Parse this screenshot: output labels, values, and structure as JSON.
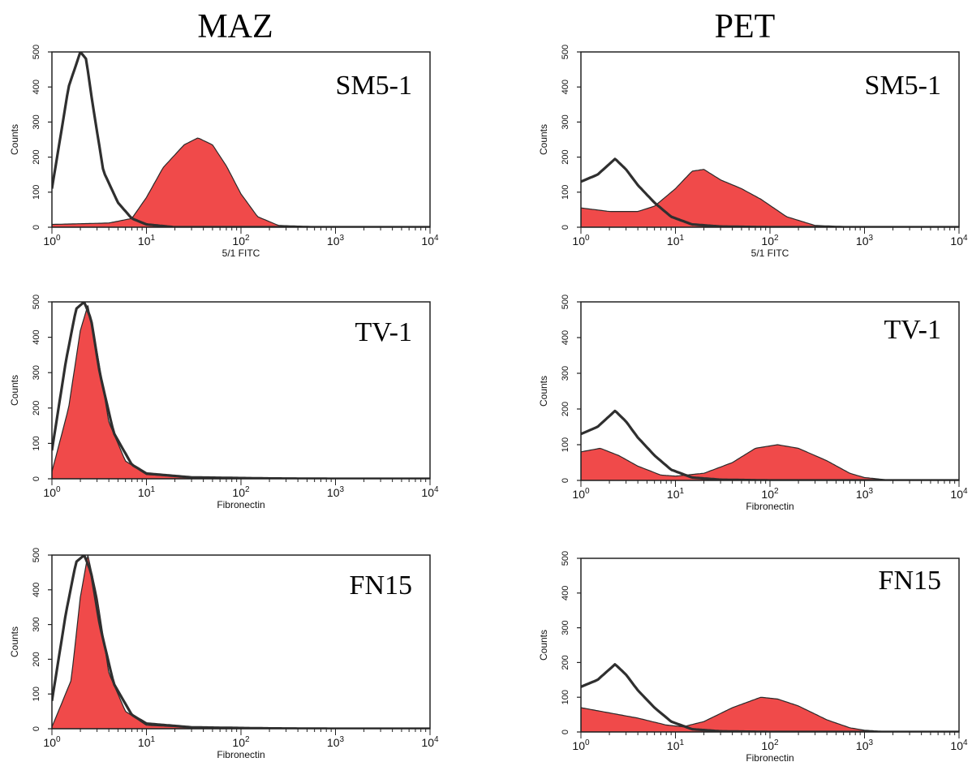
{
  "column_titles": [
    "MAZ",
    "PET"
  ],
  "colors": {
    "filled": "#f04a4a",
    "outline": "#2f2f2f"
  },
  "chart_data": [
    {
      "type": "area",
      "column": "MAZ",
      "title": "SM5-1",
      "xlabel": "5/1 FITC",
      "ylabel": "Counts",
      "x_scale": "log",
      "xlim": [
        1,
        10000
      ],
      "ylim": [
        0,
        500
      ],
      "y_ticks": [
        0,
        100,
        200,
        300,
        400,
        500
      ],
      "x_ticks": [
        "10^0",
        "10^1",
        "10^2",
        "10^3",
        "10^4"
      ],
      "series": [
        {
          "x": [
            1,
            1.5,
            2,
            2.3,
            2.7,
            3.5,
            5,
            7,
            10,
            20
          ],
          "y": [
            110,
            400,
            500,
            480,
            350,
            160,
            70,
            25,
            8,
            0
          ]
        },
        {
          "x": [
            1,
            4,
            7,
            10,
            15,
            25,
            35,
            50,
            70,
            100,
            150,
            250,
            1000
          ],
          "y": [
            8,
            12,
            25,
            85,
            170,
            235,
            255,
            235,
            175,
            95,
            30,
            5,
            0
          ]
        }
      ]
    },
    {
      "type": "area",
      "column": "PET",
      "title": "SM5-1",
      "xlabel": "5/1 FITC",
      "ylabel": "Counts",
      "x_scale": "log",
      "xlim": [
        1,
        10000
      ],
      "ylim": [
        0,
        500
      ],
      "y_ticks": [
        0,
        100,
        200,
        300,
        400,
        500
      ],
      "x_ticks": [
        "10^0",
        "10^1",
        "10^2",
        "10^3",
        "10^4"
      ],
      "series": [
        {
          "x": [
            1,
            1.5,
            2.3,
            3,
            4,
            6,
            9,
            15,
            30,
            100
          ],
          "y": [
            130,
            150,
            195,
            165,
            120,
            70,
            30,
            8,
            2,
            0
          ]
        },
        {
          "x": [
            1,
            2,
            4,
            6,
            10,
            15,
            20,
            30,
            50,
            80,
            150,
            300,
            1000
          ],
          "y": [
            55,
            45,
            45,
            60,
            110,
            160,
            165,
            135,
            110,
            80,
            30,
            5,
            0
          ]
        }
      ]
    },
    {
      "type": "area",
      "column": "MAZ",
      "title": "TV-1",
      "xlabel": "Fibronectin",
      "ylabel": "Counts",
      "x_scale": "log",
      "xlim": [
        1,
        10000
      ],
      "ylim": [
        0,
        500
      ],
      "y_ticks": [
        0,
        100,
        200,
        300,
        400,
        500
      ],
      "x_ticks": [
        "10^0",
        "10^1",
        "10^2",
        "10^3",
        "10^4"
      ],
      "series": [
        {
          "x": [
            1,
            1.4,
            1.8,
            2.2,
            2.6,
            3.2,
            4.5,
            7,
            10,
            30,
            200,
            1000
          ],
          "y": [
            80,
            330,
            480,
            500,
            450,
            300,
            130,
            40,
            15,
            4,
            1,
            0
          ]
        },
        {
          "x": [
            1,
            1.5,
            2,
            2.4,
            3,
            4,
            6,
            10,
            40,
            1000
          ],
          "y": [
            20,
            200,
            420,
            490,
            360,
            160,
            50,
            12,
            2,
            0
          ]
        }
      ]
    },
    {
      "type": "area",
      "column": "PET",
      "title": "TV-1",
      "xlabel": "Fibronectin",
      "ylabel": "Counts",
      "x_scale": "log",
      "xlim": [
        1,
        10000
      ],
      "ylim": [
        0,
        500
      ],
      "y_ticks": [
        0,
        100,
        200,
        300,
        400,
        500
      ],
      "x_ticks": [
        "10^0",
        "10^1",
        "10^2",
        "10^3",
        "10^4"
      ],
      "series": [
        {
          "x": [
            1,
            1.5,
            2.3,
            3,
            4,
            6,
            9,
            15,
            30,
            100
          ],
          "y": [
            130,
            150,
            195,
            165,
            120,
            70,
            30,
            8,
            2,
            0
          ]
        },
        {
          "x": [
            1,
            1.6,
            2.5,
            4,
            7,
            10,
            20,
            40,
            70,
            120,
            200,
            400,
            700,
            1000,
            2000
          ],
          "y": [
            80,
            90,
            70,
            40,
            15,
            12,
            20,
            50,
            90,
            100,
            90,
            55,
            20,
            8,
            0
          ]
        }
      ]
    },
    {
      "type": "area",
      "column": "MAZ",
      "title": "FN15",
      "xlabel": "Fibronectin",
      "ylabel": "Counts",
      "x_scale": "log",
      "xlim": [
        1,
        10000
      ],
      "ylim": [
        0,
        500
      ],
      "y_ticks": [
        0,
        100,
        200,
        300,
        400,
        500
      ],
      "x_ticks": [
        "10^0",
        "10^1",
        "10^2",
        "10^3",
        "10^4"
      ],
      "series": [
        {
          "x": [
            1,
            1.4,
            1.8,
            2.2,
            2.6,
            3.2,
            4.5,
            7,
            10,
            30,
            200,
            1000
          ],
          "y": [
            80,
            330,
            480,
            500,
            450,
            300,
            130,
            40,
            15,
            4,
            1,
            0
          ]
        },
        {
          "x": [
            1,
            1.6,
            2,
            2.4,
            3,
            4,
            6,
            10,
            40,
            1000
          ],
          "y": [
            5,
            140,
            380,
            500,
            380,
            160,
            50,
            10,
            2,
            0
          ]
        }
      ]
    },
    {
      "type": "area",
      "column": "PET",
      "title": "FN15",
      "xlabel": "Fibronectin",
      "ylabel": "Counts",
      "x_scale": "log",
      "xlim": [
        1,
        10000
      ],
      "ylim": [
        0,
        500
      ],
      "y_ticks": [
        0,
        100,
        200,
        300,
        400,
        500
      ],
      "x_ticks": [
        "10^0",
        "10^1",
        "10^2",
        "10^3",
        "10^4"
      ],
      "series": [
        {
          "x": [
            1,
            1.5,
            2.3,
            3,
            4,
            6,
            9,
            15,
            30,
            100
          ],
          "y": [
            130,
            150,
            195,
            165,
            120,
            70,
            30,
            8,
            2,
            0
          ]
        },
        {
          "x": [
            1,
            2,
            4,
            8,
            12,
            20,
            40,
            80,
            120,
            200,
            400,
            700,
            1000,
            2000
          ],
          "y": [
            70,
            55,
            40,
            20,
            15,
            30,
            70,
            100,
            95,
            75,
            35,
            12,
            5,
            0
          ]
        }
      ]
    }
  ]
}
